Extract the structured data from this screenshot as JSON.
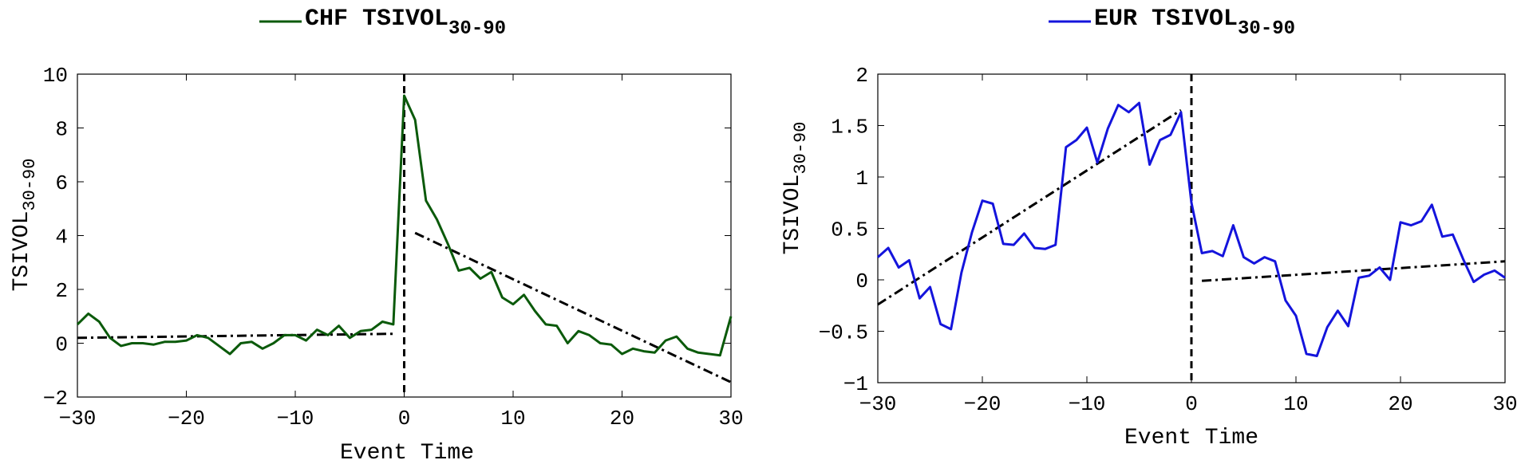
{
  "chart_data": [
    {
      "type": "line",
      "title": "CHF TSIVOL",
      "title_sub": "30-90",
      "xlabel": "Event Time",
      "ylabel": "TSIVOL",
      "ylabel_sub": "30-90",
      "xlim": [
        -30,
        30
      ],
      "ylim": [
        -2,
        10
      ],
      "xticks": [
        -30,
        -20,
        -10,
        0,
        10,
        20,
        30
      ],
      "yticks": [
        -2,
        0,
        2,
        4,
        6,
        8,
        10
      ],
      "grid": false,
      "legend": "top-center",
      "series_color": "#0b5a0b",
      "series": [
        {
          "name": "CHF TSIVOL30-90",
          "x": [
            -30,
            -29,
            -28,
            -27,
            -26,
            -25,
            -24,
            -23,
            -22,
            -21,
            -20,
            -19,
            -18,
            -17,
            -16,
            -15,
            -14,
            -13,
            -12,
            -11,
            -10,
            -9,
            -8,
            -7,
            -6,
            -5,
            -4,
            -3,
            -2,
            -1,
            0,
            1,
            2,
            3,
            4,
            5,
            6,
            7,
            8,
            9,
            10,
            11,
            12,
            13,
            14,
            15,
            16,
            17,
            18,
            19,
            20,
            21,
            22,
            23,
            24,
            25,
            26,
            27,
            28,
            29,
            30
          ],
          "values": [
            0.7,
            1.1,
            0.8,
            0.2,
            -0.1,
            0.0,
            0.0,
            -0.05,
            0.05,
            0.05,
            0.1,
            0.3,
            0.2,
            -0.1,
            -0.4,
            0.0,
            0.05,
            -0.2,
            0.0,
            0.3,
            0.3,
            0.1,
            0.5,
            0.3,
            0.65,
            0.2,
            0.45,
            0.5,
            0.8,
            0.7,
            9.2,
            8.3,
            5.3,
            4.6,
            3.7,
            2.7,
            2.8,
            2.4,
            2.65,
            1.7,
            1.45,
            1.8,
            1.2,
            0.7,
            0.65,
            0.0,
            0.45,
            0.3,
            0.0,
            -0.05,
            -0.4,
            -0.2,
            -0.3,
            -0.35,
            0.1,
            0.25,
            -0.2,
            -0.35,
            -0.4,
            -0.45,
            1.0
          ]
        }
      ],
      "fits": [
        {
          "x": [
            -30,
            -1
          ],
          "values": [
            0.2,
            0.35
          ]
        },
        {
          "x": [
            1,
            30
          ],
          "values": [
            4.1,
            -1.45
          ]
        }
      ],
      "event_line_x": 0
    },
    {
      "type": "line",
      "title": "EUR TSIVOL",
      "title_sub": "30-90",
      "xlabel": "Event Time",
      "ylabel": "TSIVOL",
      "ylabel_sub": "30-90",
      "xlim": [
        -30,
        30
      ],
      "ylim": [
        -1,
        2
      ],
      "xticks": [
        -30,
        -20,
        -10,
        0,
        10,
        20,
        30
      ],
      "yticks": [
        -1,
        -0.5,
        0,
        0.5,
        1,
        1.5,
        2
      ],
      "grid": false,
      "legend": "top-center",
      "series_color": "#1414dc",
      "series": [
        {
          "name": "EUR TSIVOL30-90",
          "x": [
            -30,
            -29,
            -28,
            -27,
            -26,
            -25,
            -24,
            -23,
            -22,
            -21,
            -20,
            -19,
            -18,
            -17,
            -16,
            -15,
            -14,
            -13,
            -12,
            -11,
            -10,
            -9,
            -8,
            -7,
            -6,
            -5,
            -4,
            -3,
            -2,
            -1,
            0,
            1,
            2,
            3,
            4,
            5,
            6,
            7,
            8,
            9,
            10,
            11,
            12,
            13,
            14,
            15,
            16,
            17,
            18,
            19,
            20,
            21,
            22,
            23,
            24,
            25,
            26,
            27,
            28,
            29,
            30
          ],
          "values": [
            0.22,
            0.31,
            0.12,
            0.19,
            -0.18,
            -0.07,
            -0.43,
            -0.48,
            0.07,
            0.46,
            0.77,
            0.74,
            0.35,
            0.34,
            0.45,
            0.31,
            0.3,
            0.34,
            1.29,
            1.36,
            1.48,
            1.14,
            1.47,
            1.7,
            1.63,
            1.72,
            1.12,
            1.36,
            1.41,
            1.63,
            0.75,
            0.26,
            0.28,
            0.23,
            0.53,
            0.22,
            0.16,
            0.22,
            0.18,
            -0.2,
            -0.35,
            -0.72,
            -0.74,
            -0.46,
            -0.3,
            -0.45,
            0.02,
            0.04,
            0.12,
            0.0,
            0.56,
            0.53,
            0.57,
            0.73,
            0.42,
            0.44,
            0.2,
            -0.02,
            0.05,
            0.09,
            0.02
          ]
        }
      ],
      "fits": [
        {
          "x": [
            -30,
            -1
          ],
          "values": [
            -0.24,
            1.65
          ]
        },
        {
          "x": [
            1,
            30
          ],
          "values": [
            -0.01,
            0.18
          ]
        }
      ],
      "event_line_x": 0
    }
  ]
}
